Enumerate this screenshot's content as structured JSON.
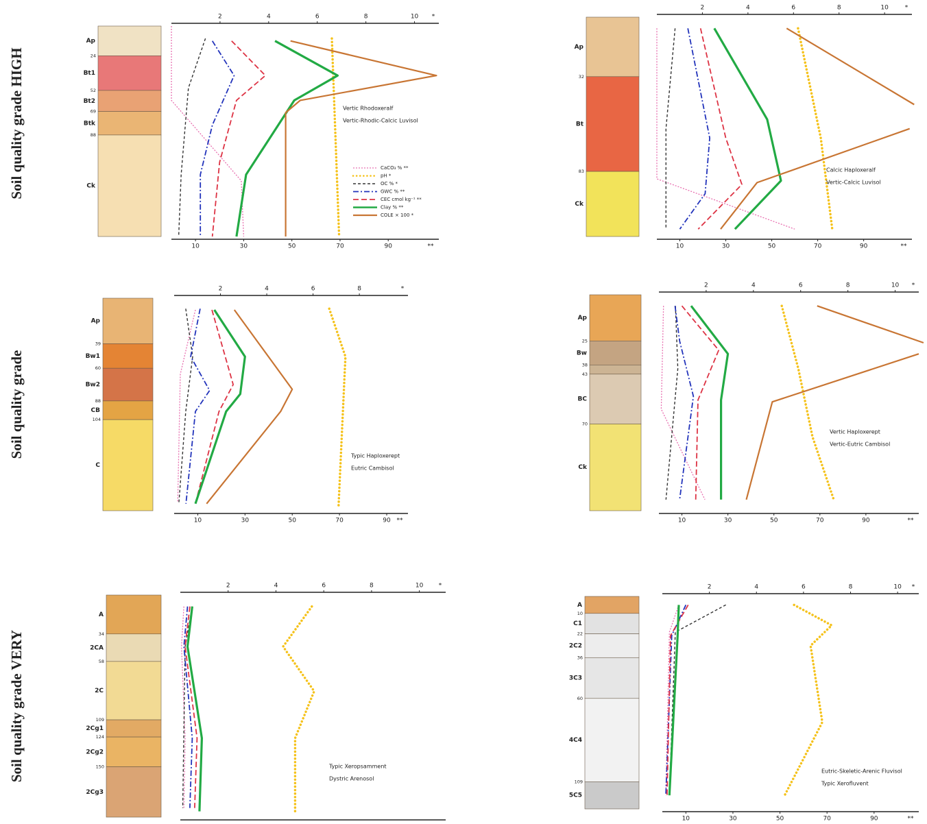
{
  "figure": {
    "row_labels": [
      "Soil quality grade HIGH",
      "Soil quality grade",
      "Soil quality grade VERY"
    ]
  },
  "chart_data": [
    {
      "type": "line",
      "legend": "right",
      "xlabel": "*",
      "x2label": "**",
      "xlim": [
        0,
        11
      ],
      "xticks": [
        2,
        4,
        6,
        8,
        10
      ],
      "x2lim": [
        0,
        111
      ],
      "x2ticks": [
        10,
        30,
        50,
        70,
        90
      ],
      "ylim": [
        170,
        0
      ],
      "classification": [
        "Vertic Rhodoxeralf",
        "Vertic-Rhodic-Calcic Luvisol"
      ],
      "horizons": [
        {
          "name": "Ap",
          "bottom": 24,
          "color": "#f0e2c4"
        },
        {
          "name": "Bt1",
          "bottom": 52,
          "color": "#e87878"
        },
        {
          "name": "Bt2",
          "bottom": 69,
          "color": "#e9a274"
        },
        {
          "name": "Btk",
          "bottom": 88,
          "color": "#eab574"
        },
        {
          "name": "Ck",
          "bottom": null,
          "color": "#f6dfb2"
        }
      ],
      "series": [
        {
          "name": "CaCO₃ % **",
          "color": "#e870b0",
          "axis": "x2",
          "values": [
            0,
            0,
            29,
            30
          ],
          "depths": [
            0,
            60,
            125,
            170
          ]
        },
        {
          "name": "pH *",
          "color": "#f5c21b",
          "axis": "x",
          "values": [
            6.6,
            6.9
          ],
          "depths": [
            10,
            170
          ]
        },
        {
          "name": "OC % *",
          "color": "#333333",
          "axis": "x",
          "values": [
            1.4,
            0.7,
            0.4,
            0.3
          ],
          "depths": [
            10,
            50,
            120,
            170
          ]
        },
        {
          "name": "GWC % **",
          "color": "#2233bb",
          "axis": "x2",
          "values": [
            17,
            26,
            17,
            12,
            12
          ],
          "depths": [
            12,
            40,
            80,
            120,
            170
          ]
        },
        {
          "name": "CEC cmol kg⁻¹ **",
          "color": "#dd3344",
          "axis": "x2",
          "values": [
            25,
            39,
            27,
            20,
            17
          ],
          "depths": [
            12,
            40,
            60,
            110,
            170
          ]
        },
        {
          "name": "Clay % **",
          "color": "#22aa44",
          "axis": "x2",
          "values": [
            43,
            69,
            51,
            31,
            27
          ],
          "depths": [
            12,
            40,
            60,
            120,
            170
          ]
        },
        {
          "name": "COLE × 100 *",
          "color": "#c87533",
          "axis": "x",
          "values": [
            4.9,
            10.9,
            5.3,
            4.7,
            4.7
          ],
          "depths": [
            12,
            40,
            60,
            70,
            170
          ]
        }
      ]
    },
    {
      "type": "line",
      "xlabel": "*",
      "x2label": "**",
      "xlim": [
        0,
        11.2
      ],
      "xticks": [
        2,
        4,
        6,
        8,
        10
      ],
      "x2lim": [
        0,
        111
      ],
      "x2ticks": [
        10,
        30,
        50,
        70,
        90
      ],
      "ylim": [
        118,
        0
      ],
      "classification": [
        "Calcic Haploxeralf",
        "Vertic-Calcic Luvisol"
      ],
      "horizons": [
        {
          "name": "Ap",
          "bottom": 32,
          "color": "#e8c494"
        },
        {
          "name": "Bt",
          "bottom": 83,
          "color": "#e86644"
        },
        {
          "name": "Ck",
          "bottom": null,
          "color": "#f2e35a"
        }
      ],
      "series": [
        {
          "values": [
            0,
            0,
            60
          ],
          "depths": [
            6,
            87,
            114
          ]
        },
        {
          "values": [
            6.2,
            7.2,
            7.7
          ],
          "depths": [
            6,
            65,
            114
          ]
        },
        {
          "values": [
            0.8,
            0.4,
            0.4
          ],
          "depths": [
            6,
            60,
            114
          ]
        },
        {
          "values": [
            13.5,
            23,
            21,
            10
          ],
          "depths": [
            6,
            65,
            95,
            114
          ]
        },
        {
          "values": [
            19,
            30,
            37,
            18
          ],
          "depths": [
            6,
            65,
            90,
            114
          ]
        },
        {
          "values": [
            25,
            48,
            54,
            34
          ],
          "depths": [
            6,
            55,
            88,
            114
          ]
        },
        {
          "values": [
            5.7,
            11.3,
            null,
            11.1,
            4.4,
            2.8
          ],
          "depths": [
            6,
            47,
            null,
            60,
            89,
            114
          ]
        }
      ]
    },
    {
      "type": "line",
      "xlabel": "*",
      "x2label": "**",
      "xlim": [
        0,
        10.1
      ],
      "xticks": [
        2,
        4,
        6,
        8
      ],
      "x2lim": [
        0,
        99
      ],
      "x2ticks": [
        10,
        30,
        50,
        70,
        90
      ],
      "ylim": [
        182,
        0
      ],
      "classification": [
        "Typic Haploxerept",
        "Eutric Cambisol"
      ],
      "horizons": [
        {
          "name": "Ap",
          "bottom": 39,
          "color": "#e8b474"
        },
        {
          "name": "Bw1",
          "bottom": 60,
          "color": "#e48434"
        },
        {
          "name": "Bw2",
          "bottom": 88,
          "color": "#d47448"
        },
        {
          "name": "CB",
          "bottom": 104,
          "color": "#e4a444"
        },
        {
          "name": "C",
          "bottom": null,
          "color": "#f6da66"
        }
      ],
      "series": [
        {
          "values": [
            9,
            2.6,
            1.5
          ],
          "depths": [
            10,
            65,
            175
          ]
        },
        {
          "values": [
            6.7,
            7.4,
            7.1
          ],
          "depths": [
            9,
            50,
            179
          ]
        },
        {
          "values": [
            0.5,
            0.8,
            0.5,
            0.2
          ],
          "depths": [
            9,
            50,
            97,
            176
          ]
        },
        {
          "values": [
            11,
            7,
            15,
            9,
            5
          ],
          "depths": [
            9,
            50,
            79,
            97,
            176
          ]
        },
        {
          "values": [
            16,
            25,
            19,
            9
          ],
          "depths": [
            10,
            74,
            97,
            176
          ]
        },
        {
          "values": [
            17,
            30,
            28,
            22,
            9
          ],
          "depths": [
            10,
            50,
            82,
            97,
            176
          ]
        },
        {
          "values": [
            2.6,
            5.1,
            4.6,
            1.4
          ],
          "depths": [
            10,
            78,
            97,
            176
          ]
        }
      ]
    },
    {
      "type": "line",
      "xlabel": "*",
      "x2label": "**",
      "xlim": [
        0,
        11
      ],
      "xticks": [
        2,
        4,
        6,
        8,
        10
      ],
      "x2lim": [
        0,
        113
      ],
      "x2ticks": [
        10,
        30,
        50,
        70,
        90
      ],
      "ylim": [
        117,
        0
      ],
      "classification": [
        "Vertic Haploxerept",
        "Vertic-Eutric Cambisol"
      ],
      "horizons": [
        {
          "name": "Ap",
          "bottom": 25,
          "color": "#e8a656"
        },
        {
          "name": "Bw",
          "bottom": 38,
          "color": "#c4a482"
        },
        {
          "name": null,
          "bottom": 43,
          "color": "#ccb494"
        },
        {
          "name": "BC",
          "bottom": 70,
          "color": "#dccab2"
        },
        {
          "name": "Ck",
          "bottom": null,
          "color": "#f2e274"
        }
      ],
      "series": [
        {
          "values": [
            2,
            1,
            20
          ],
          "depths": [
            6,
            62,
            111
          ]
        },
        {
          "values": [
            5.2,
            5.9,
            6.5,
            7.4
          ],
          "depths": [
            6,
            40,
            77,
            111
          ]
        },
        {
          "values": [
            0.7,
            0.8,
            0.3
          ],
          "depths": [
            6,
            40,
            111
          ]
        },
        {
          "values": [
            7,
            9,
            15,
            9
          ],
          "depths": [
            6,
            25,
            55,
            111
          ]
        },
        {
          "values": [
            10,
            26,
            17,
            16
          ],
          "depths": [
            6,
            30,
            57,
            111
          ]
        },
        {
          "values": [
            14,
            30,
            27,
            27
          ],
          "depths": [
            6,
            32,
            57,
            111
          ]
        },
        {
          "values": [
            6.7,
            11.2,
            null,
            11,
            4.8,
            3.7
          ],
          "depths": [
            6,
            26,
            null,
            32,
            58,
            111
          ]
        }
      ]
    },
    {
      "type": "line",
      "xlabel": "*",
      "xlim": [
        0,
        11.1
      ],
      "xticks": [
        2,
        4,
        6,
        8,
        10
      ],
      "x2lim": [
        0,
        111
      ],
      "ylim": [
        194,
        0
      ],
      "classification": [
        "Typic Xeropsamment",
        "Dystric Arenosol"
      ],
      "horizons": [
        {
          "name": "A",
          "bottom": 34,
          "color": "#e2a656"
        },
        {
          "name": "2CA",
          "bottom": 58,
          "color": "#eadab4"
        },
        {
          "name": "2C",
          "bottom": 109,
          "color": "#f2da94"
        },
        {
          "name": "2Cg1",
          "bottom": 124,
          "color": "#e2aa64"
        },
        {
          "name": "2Cg2",
          "bottom": 150,
          "color": "#eab464"
        },
        {
          "name": "2Cg3",
          "bottom": null,
          "color": "#daa474"
        }
      ],
      "series": [
        {
          "values": [
            1.5,
            0.5,
            2,
            1.5
          ],
          "depths": [
            10,
            45,
            125,
            186
          ]
        },
        {
          "values": [
            5.5,
            4.3,
            5.6,
            4.8,
            4.8
          ],
          "depths": [
            10,
            45,
            84,
            125,
            189
          ]
        },
        {
          "values": [
            0.5,
            0.2,
            0.1
          ],
          "depths": [
            10,
            45,
            186
          ]
        },
        {
          "values": [
            3,
            1.5,
            5,
            4
          ],
          "depths": [
            10,
            45,
            125,
            186
          ]
        },
        {
          "values": [
            4,
            2,
            7,
            6
          ],
          "depths": [
            10,
            45,
            125,
            186
          ]
        },
        {
          "values": [
            5,
            3,
            9,
            8
          ],
          "depths": [
            10,
            45,
            125,
            189
          ]
        }
      ]
    },
    {
      "type": "line",
      "xlabel": "*",
      "x2label": "**",
      "xlim": [
        0,
        10.9
      ],
      "xticks": [
        2,
        4,
        6,
        8,
        10
      ],
      "x2lim": [
        0,
        109
      ],
      "x2ticks": [
        10,
        30,
        50,
        70,
        90
      ],
      "ylim": [
        125,
        0
      ],
      "classification": [
        "Eutric-Skeletic-Arenic Fluvisol",
        "Typic Xerofluvent"
      ],
      "horizons": [
        {
          "name": "A",
          "bottom": 10,
          "color": "#e2a464"
        },
        {
          "name": "C1",
          "bottom": 22,
          "color": "#e2e2e2"
        },
        {
          "name": "2C2",
          "bottom": 36,
          "color": "#ededed"
        },
        {
          "name": "3C3",
          "bottom": 60,
          "color": "#e6e6e6"
        },
        {
          "name": "4C4",
          "bottom": 109,
          "color": "#f2f2f2"
        },
        {
          "name": "5C5",
          "bottom": null,
          "color": "#cacaca"
        }
      ],
      "series": [
        {
          "values": [
            7,
            3,
            1.5
          ],
          "depths": [
            5,
            21,
            117
          ]
        },
        {
          "values": [
            5.6,
            7.2,
            6.3,
            6.8,
            5.2
          ],
          "depths": [
            5,
            17,
            29,
            74,
            117
          ]
        },
        {
          "values": [
            2.7,
            0.55,
            0.3
          ],
          "depths": [
            5,
            21,
            117
          ]
        },
        {
          "values": [
            10,
            4,
            1.5
          ],
          "depths": [
            5,
            23,
            117
          ]
        },
        {
          "values": [
            11,
            3.5,
            2
          ],
          "depths": [
            5,
            23,
            117
          ]
        },
        {
          "values": [
            7,
            6.5,
            3
          ],
          "depths": [
            5,
            23,
            117
          ]
        }
      ]
    }
  ]
}
